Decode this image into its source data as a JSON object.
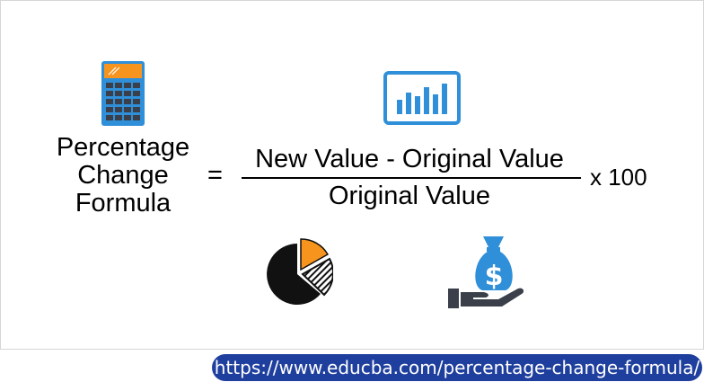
{
  "formula": {
    "term_lines": [
      "Percentage",
      "Change",
      "Formula"
    ],
    "equals": "=",
    "numerator": "New Value - Original Value",
    "denominator": "Original Value",
    "multiplier": "x 100"
  },
  "icons": [
    "calculator-icon",
    "bar-chart-monitor-icon",
    "pie-chart-icon",
    "money-bag-hand-icon"
  ],
  "colors": {
    "accent_blue": "#2f8fd8",
    "accent_orange": "#f7941d",
    "dark": "#3a3f4a",
    "url_pill": "#1f3f9e"
  },
  "footer": {
    "url": "https://www.educba.com/percentage-change-formula/"
  }
}
